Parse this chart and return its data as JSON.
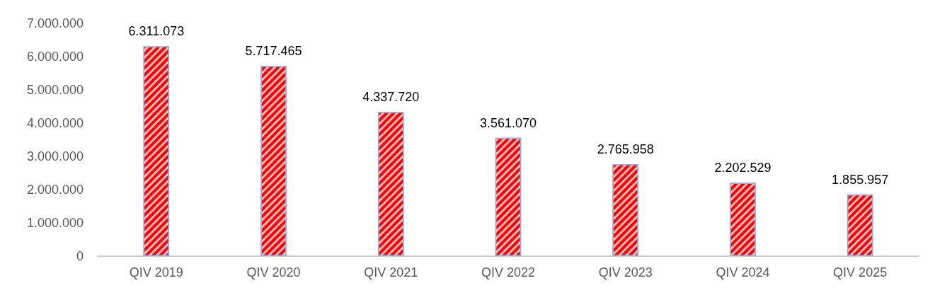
{
  "chart_data": {
    "type": "bar",
    "categories": [
      "QIV 2019",
      "QIV 2020",
      "QIV 2021",
      "QIV 2022",
      "QIV 2023",
      "QIV 2024",
      "QIV 2025"
    ],
    "values": [
      6311073,
      5717465,
      4337720,
      3561070,
      2765958,
      2202529,
      1855957
    ],
    "color": "#ff0000",
    "ylim": [
      0,
      7000000
    ],
    "yticks": [
      {
        "value": 0,
        "label": "0"
      },
      {
        "value": 1000000,
        "label": "1.000.000"
      },
      {
        "value": 2000000,
        "label": "2.000.000"
      },
      {
        "value": 3000000,
        "label": "3.000.000"
      },
      {
        "value": 4000000,
        "label": "4.000.000"
      },
      {
        "value": 5000000,
        "label": "5.000.000"
      },
      {
        "value": 6000000,
        "label": "6.000.000"
      },
      {
        "value": 7000000,
        "label": "7.000.000"
      }
    ],
    "value_labels": [
      "6.311.073",
      "5.717.465",
      "4.337.720",
      "3.561.070",
      "2.765.958",
      "2.202.529",
      "1.855.957"
    ]
  }
}
